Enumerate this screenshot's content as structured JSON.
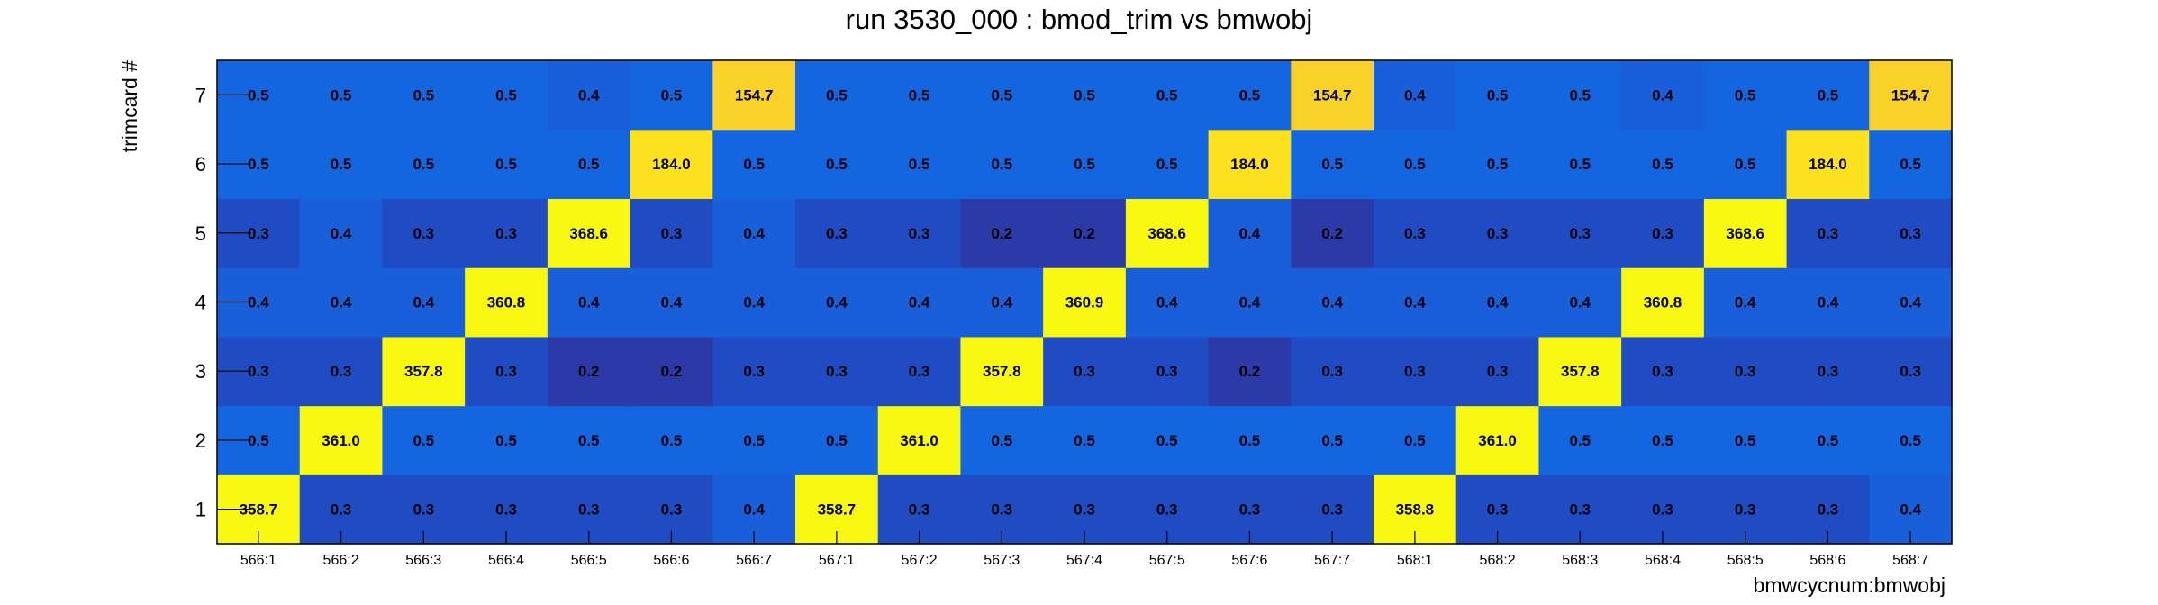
{
  "chart_data": {
    "type": "heatmap",
    "title": "run 3530_000 : bmod_trim vs bmwobj",
    "xlabel": "bmwcycnum:bmwobj",
    "ylabel": "trimcard #",
    "x_categories": [
      "566:1",
      "566:2",
      "566:3",
      "566:4",
      "566:5",
      "566:6",
      "566:7",
      "567:1",
      "567:2",
      "567:3",
      "567:4",
      "567:5",
      "567:6",
      "567:7",
      "568:1",
      "568:2",
      "568:3",
      "568:4",
      "568:5",
      "568:6",
      "568:7"
    ],
    "y_categories": [
      "1",
      "2",
      "3",
      "4",
      "5",
      "6",
      "7"
    ],
    "values": [
      [
        358.7,
        0.3,
        0.3,
        0.3,
        0.3,
        0.3,
        0.4,
        358.7,
        0.3,
        0.3,
        0.3,
        0.3,
        0.3,
        0.3,
        358.8,
        0.3,
        0.3,
        0.3,
        0.3,
        0.3,
        0.4
      ],
      [
        0.5,
        361.0,
        0.5,
        0.5,
        0.5,
        0.5,
        0.5,
        0.5,
        361.0,
        0.5,
        0.5,
        0.5,
        0.5,
        0.5,
        0.5,
        361.0,
        0.5,
        0.5,
        0.5,
        0.5,
        0.5
      ],
      [
        0.3,
        0.3,
        357.8,
        0.3,
        0.2,
        0.2,
        0.3,
        0.3,
        0.3,
        357.8,
        0.3,
        0.3,
        0.2,
        0.3,
        0.3,
        0.3,
        357.8,
        0.3,
        0.3,
        0.3,
        0.3
      ],
      [
        0.4,
        0.4,
        0.4,
        360.8,
        0.4,
        0.4,
        0.4,
        0.4,
        0.4,
        0.4,
        360.9,
        0.4,
        0.4,
        0.4,
        0.4,
        0.4,
        0.4,
        360.8,
        0.4,
        0.4,
        0.4
      ],
      [
        0.3,
        0.4,
        0.3,
        0.3,
        368.6,
        0.3,
        0.4,
        0.3,
        0.3,
        0.2,
        0.2,
        368.6,
        0.4,
        0.2,
        0.3,
        0.3,
        0.3,
        0.3,
        368.6,
        0.3,
        0.3
      ],
      [
        0.5,
        0.5,
        0.5,
        0.5,
        0.5,
        184.0,
        0.5,
        0.5,
        0.5,
        0.5,
        0.5,
        0.5,
        184.0,
        0.5,
        0.5,
        0.5,
        0.5,
        0.5,
        0.5,
        184.0,
        0.5
      ],
      [
        0.5,
        0.5,
        0.5,
        0.5,
        0.4,
        0.5,
        154.7,
        0.5,
        0.5,
        0.5,
        0.5,
        0.5,
        0.5,
        154.7,
        0.4,
        0.5,
        0.5,
        0.4,
        0.5,
        0.5,
        154.7
      ]
    ],
    "labels": [
      [
        "358.7",
        "0.3",
        "0.3",
        "0.3",
        "0.3",
        "0.3",
        "0.4",
        "358.7",
        "0.3",
        "0.3",
        "0.3",
        "0.3",
        "0.3",
        "0.3",
        "358.8",
        "0.3",
        "0.3",
        "0.3",
        "0.3",
        "0.3",
        "0.4"
      ],
      [
        "0.5",
        "361.0",
        "0.5",
        "0.5",
        "0.5",
        "0.5",
        "0.5",
        "0.5",
        "361.0",
        "0.5",
        "0.5",
        "0.5",
        "0.5",
        "0.5",
        "0.5",
        "361.0",
        "0.5",
        "0.5",
        "0.5",
        "0.5",
        "0.5"
      ],
      [
        "0.3",
        "0.3",
        "357.8",
        "0.3",
        "0.2",
        "0.2",
        "0.3",
        "0.3",
        "0.3",
        "357.8",
        "0.3",
        "0.3",
        "0.2",
        "0.3",
        "0.3",
        "0.3",
        "357.8",
        "0.3",
        "0.3",
        "0.3",
        "0.3"
      ],
      [
        "0.4",
        "0.4",
        "0.4",
        "360.8",
        "0.4",
        "0.4",
        "0.4",
        "0.4",
        "0.4",
        "0.4",
        "360.9",
        "0.4",
        "0.4",
        "0.4",
        "0.4",
        "0.4",
        "0.4",
        "360.8",
        "0.4",
        "0.4",
        "0.4"
      ],
      [
        "0.3",
        "0.4",
        "0.3",
        "0.3",
        "368.6",
        "0.3",
        "0.4",
        "0.3",
        "0.3",
        "0.2",
        "0.2",
        "368.6",
        "0.4",
        "0.2",
        "0.3",
        "0.3",
        "0.3",
        "0.3",
        "368.6",
        "0.3",
        "0.3"
      ],
      [
        "0.5",
        "0.5",
        "0.5",
        "0.5",
        "0.5",
        "184.0",
        "0.5",
        "0.5",
        "0.5",
        "0.5",
        "0.5",
        "0.5",
        "184.0",
        "0.5",
        "0.5",
        "0.5",
        "0.5",
        "0.5",
        "0.5",
        "184.0",
        "0.5"
      ],
      [
        "0.5",
        "0.5",
        "0.5",
        "0.5",
        "0.4",
        "0.5",
        "154.7",
        "0.5",
        "0.5",
        "0.5",
        "0.5",
        "0.5",
        "0.5",
        "154.7",
        "0.4",
        "0.5",
        "0.5",
        "0.4",
        "0.5",
        "0.5",
        "154.7"
      ]
    ],
    "grid": false,
    "colors": {
      "0.2": "#2b3aa6",
      "0.3": "#1f4cc3",
      "0.4": "#195fd9",
      "0.5": "#1466e0",
      "154.7": "#fad02a",
      "184.0": "#fbe11e",
      "high": "#f8f810"
    }
  }
}
